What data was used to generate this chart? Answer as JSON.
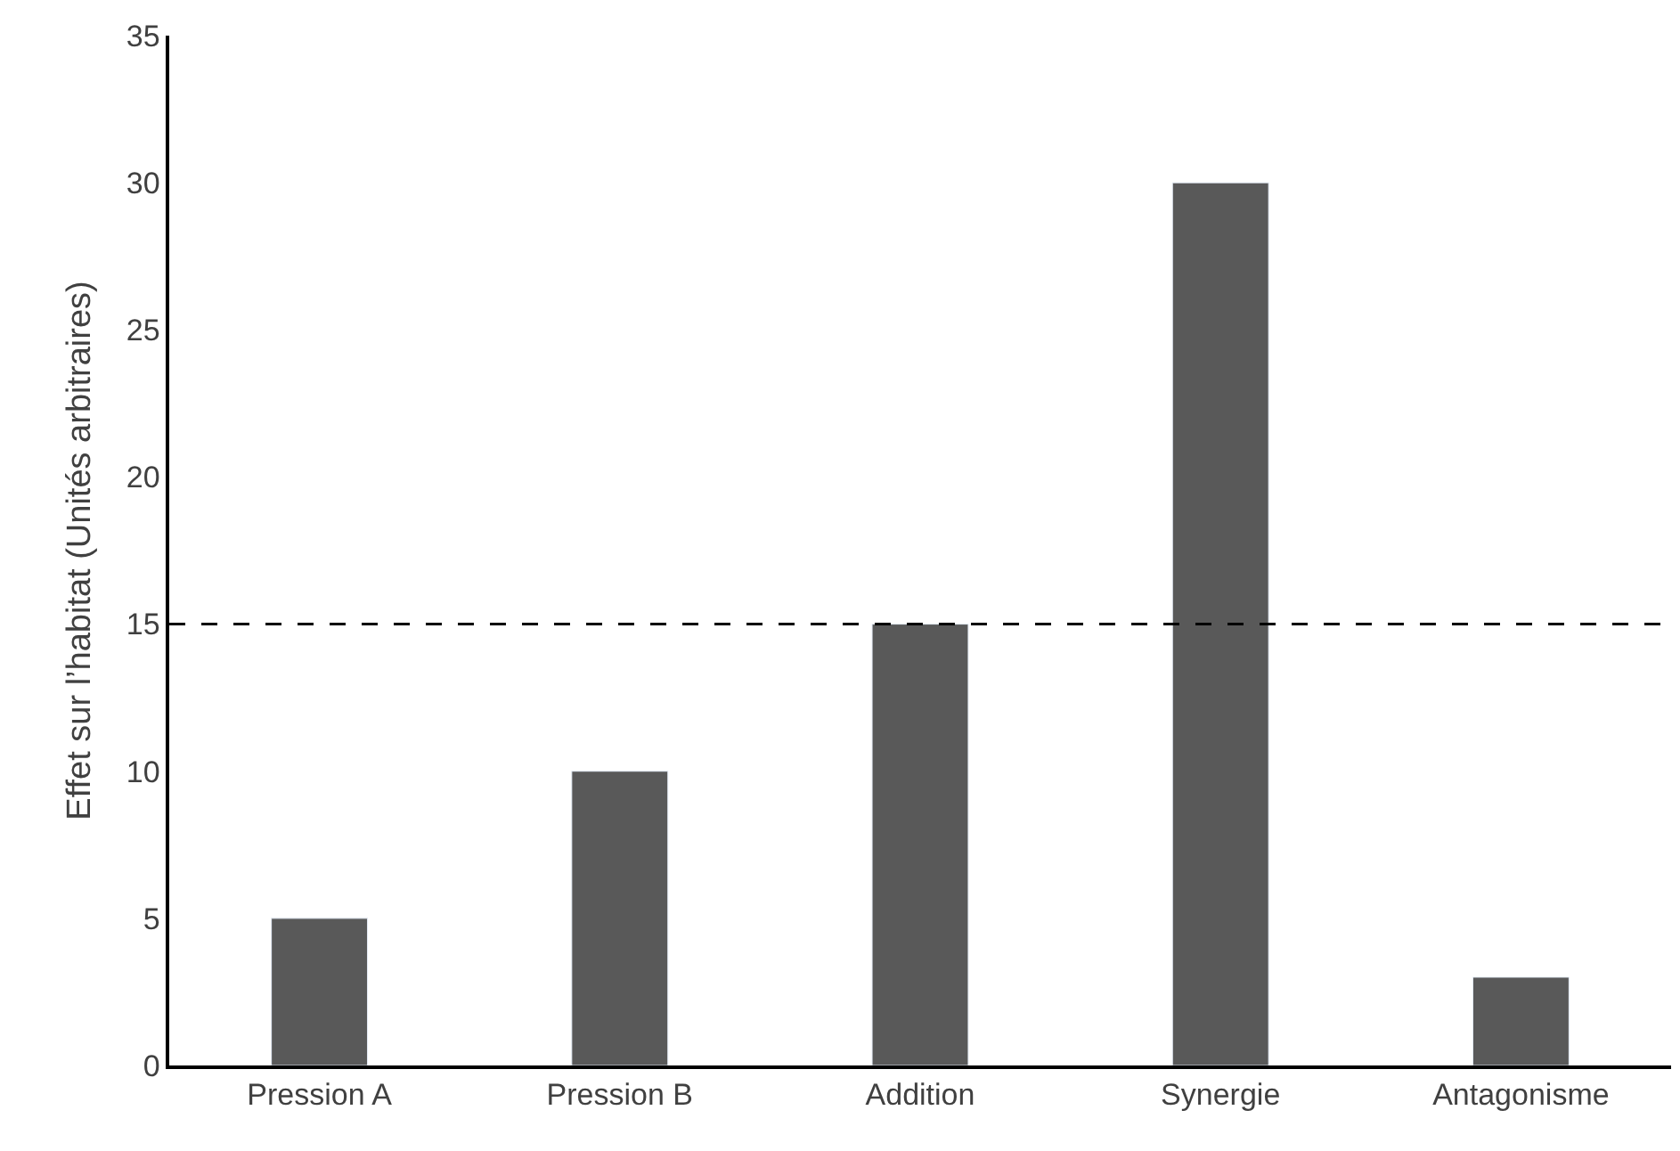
{
  "chart_data": {
    "type": "bar",
    "ylabel": "Effet sur l’habitat (Unités arbitraires)",
    "categories": [
      "Pression A",
      "Pression B",
      "Addition",
      "Synergie",
      "Antagonisme"
    ],
    "values": [
      5,
      10,
      15,
      30,
      3
    ],
    "color": "#595959",
    "ylim": [
      0,
      35
    ],
    "yticks": [
      0,
      5,
      10,
      15,
      20,
      25,
      30,
      35
    ],
    "ref_lines": [
      {
        "axis": "y",
        "value": 15,
        "color": "#000000",
        "line_style": "dashed"
      }
    ]
  }
}
